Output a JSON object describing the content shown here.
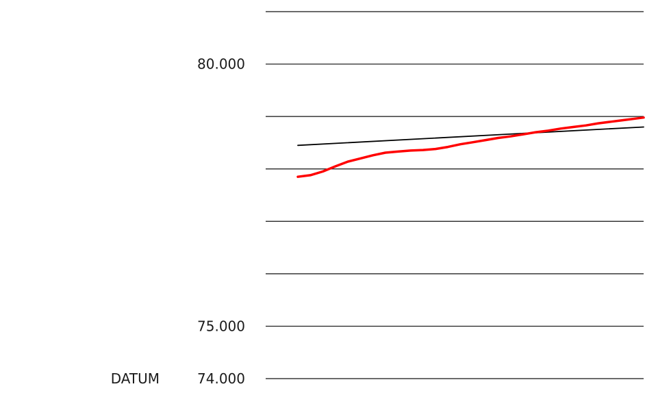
{
  "chart_data": {
    "type": "line",
    "title": "",
    "xlabel": "",
    "ylabel": "",
    "datum_label": "DATUM",
    "datum_value": 74,
    "datum_value_label": "74.000",
    "ylim": [
      74,
      81
    ],
    "xlim": [
      0,
      100
    ],
    "grid": true,
    "gridlines": [
      74,
      75,
      76,
      77,
      78,
      79,
      80,
      81
    ],
    "yticks": [
      {
        "value": 80,
        "label": "80.000"
      },
      {
        "value": 75,
        "label": "75.000"
      }
    ],
    "legend": "none",
    "series": [
      {
        "color": "#000000",
        "points": [
          [
            0,
            78.45
          ],
          [
            100,
            78.8
          ]
        ]
      },
      {
        "color": "#ff0000",
        "points": [
          [
            0,
            77.85
          ],
          [
            3.6,
            77.88
          ],
          [
            7.2,
            77.95
          ],
          [
            10.9,
            78.05
          ],
          [
            14.5,
            78.14
          ],
          [
            18.1,
            78.2
          ],
          [
            21.7,
            78.26
          ],
          [
            25.3,
            78.31
          ],
          [
            28.9,
            78.33
          ],
          [
            32.6,
            78.35
          ],
          [
            36.2,
            78.36
          ],
          [
            39.8,
            78.38
          ],
          [
            43.4,
            78.42
          ],
          [
            47.0,
            78.47
          ],
          [
            50.7,
            78.51
          ],
          [
            54.3,
            78.55
          ],
          [
            57.9,
            78.59
          ],
          [
            61.5,
            78.62
          ],
          [
            65.2,
            78.66
          ],
          [
            68.8,
            78.7
          ],
          [
            72.4,
            78.73
          ],
          [
            76.0,
            78.77
          ],
          [
            79.6,
            78.8
          ],
          [
            83.3,
            78.83
          ],
          [
            86.9,
            78.87
          ],
          [
            90.5,
            78.9
          ],
          [
            94.1,
            78.93
          ],
          [
            97.7,
            78.96
          ],
          [
            100,
            78.98
          ]
        ]
      }
    ]
  }
}
